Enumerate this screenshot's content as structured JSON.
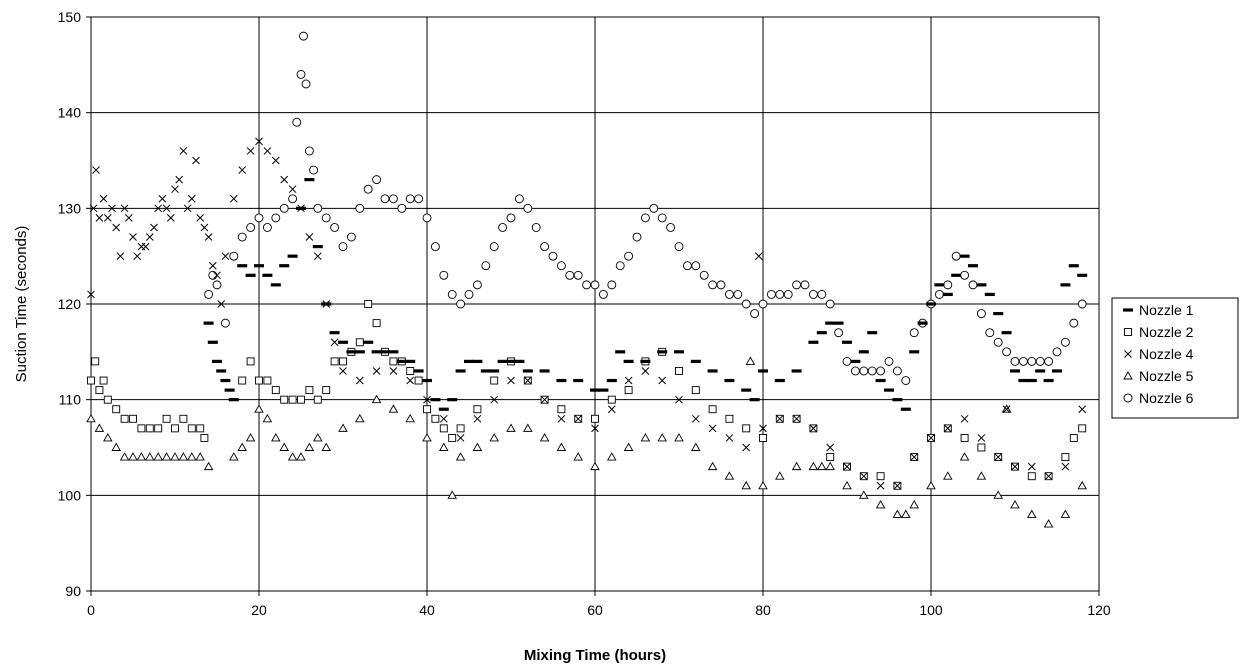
{
  "chart_data": {
    "type": "scatter",
    "title": "",
    "xlabel": "Mixing Time (hours)",
    "ylabel": "Suction Time (seconds)",
    "xlim": [
      0,
      120
    ],
    "ylim": [
      90,
      150
    ],
    "xticks": [
      0,
      20,
      40,
      60,
      80,
      100,
      120
    ],
    "yticks": [
      90,
      100,
      110,
      120,
      130,
      140,
      150
    ],
    "grid": true,
    "legend_position": "right",
    "series": [
      {
        "name": "Nozzle 1",
        "marker": "dash",
        "color": "#000000",
        "x": [
          14,
          14.5,
          15,
          15.5,
          16,
          16.5,
          17,
          18,
          19,
          20,
          21,
          22,
          23,
          24,
          25,
          26,
          27,
          28,
          29,
          30,
          31,
          32,
          33,
          34,
          35,
          36,
          37,
          38,
          39,
          40,
          41,
          42,
          43,
          44,
          45,
          46,
          47,
          48,
          49,
          50,
          51,
          52,
          54,
          56,
          58,
          60,
          61,
          62,
          63,
          64,
          66,
          68,
          70,
          72,
          74,
          76,
          78,
          79,
          80,
          82,
          84,
          86,
          87,
          88,
          89,
          90,
          91,
          92,
          93,
          94,
          95,
          96,
          97,
          98,
          99,
          100,
          101,
          102,
          103,
          104,
          105,
          106,
          107,
          108,
          109,
          110,
          111,
          112,
          113,
          114,
          115,
          116,
          117,
          118
        ],
        "y": [
          118,
          116,
          114,
          113,
          112,
          111,
          110,
          124,
          123,
          124,
          123,
          122,
          124,
          125,
          130,
          133,
          126,
          120,
          117,
          116,
          115,
          115,
          116,
          115,
          115,
          115,
          114,
          114,
          113,
          112,
          110,
          109,
          110,
          113,
          114,
          114,
          113,
          113,
          114,
          114,
          114,
          113,
          113,
          112,
          112,
          111,
          111,
          112,
          115,
          114,
          114,
          115,
          115,
          114,
          113,
          112,
          111,
          110,
          113,
          112,
          113,
          116,
          117,
          118,
          118,
          116,
          114,
          115,
          117,
          112,
          111,
          110,
          109,
          115,
          118,
          120,
          122,
          121,
          123,
          125,
          124,
          122,
          121,
          119,
          117,
          113,
          112,
          112,
          113,
          112,
          113,
          122,
          124,
          123
        ]
      },
      {
        "name": "Nozzle 2",
        "marker": "square",
        "color": "#000000",
        "x": [
          0,
          0.5,
          1,
          1.5,
          2,
          3,
          4,
          5,
          6,
          7,
          8,
          9,
          10,
          11,
          12,
          13,
          13.5,
          18,
          19,
          20,
          21,
          22,
          23,
          24,
          25,
          26,
          27,
          28,
          29,
          30,
          31,
          32,
          33,
          34,
          35,
          36,
          37,
          38,
          39,
          40,
          41,
          42,
          43,
          44,
          46,
          48,
          50,
          52,
          54,
          56,
          58,
          60,
          62,
          64,
          66,
          68,
          70,
          72,
          74,
          76,
          78,
          80,
          82,
          84,
          86,
          88,
          90,
          92,
          94,
          96,
          98,
          100,
          102,
          104,
          106,
          108,
          110,
          112,
          114,
          116,
          117,
          118
        ],
        "y": [
          112,
          114,
          111,
          112,
          110,
          109,
          108,
          108,
          107,
          107,
          107,
          108,
          107,
          108,
          107,
          107,
          106,
          112,
          114,
          112,
          112,
          111,
          110,
          110,
          110,
          111,
          110,
          111,
          114,
          114,
          115,
          116,
          120,
          118,
          115,
          114,
          114,
          113,
          112,
          109,
          108,
          107,
          106,
          107,
          109,
          112,
          114,
          112,
          110,
          109,
          108,
          108,
          110,
          111,
          114,
          115,
          113,
          111,
          109,
          108,
          107,
          106,
          108,
          108,
          107,
          104,
          103,
          102,
          102,
          101,
          104,
          106,
          107,
          106,
          105,
          104,
          103,
          102,
          102,
          104,
          106,
          107
        ]
      },
      {
        "name": "Nozzle 4",
        "marker": "x",
        "color": "#000000",
        "x": [
          0,
          0.3,
          0.6,
          1,
          1.5,
          2,
          2.5,
          3,
          3.5,
          4,
          4.5,
          5,
          5.5,
          6,
          6.5,
          7,
          7.5,
          8,
          8.5,
          9,
          9.5,
          10,
          10.5,
          11,
          11.5,
          12,
          12.5,
          13,
          13.5,
          14,
          14.5,
          15,
          15.5,
          16,
          17,
          18,
          19,
          20,
          21,
          22,
          23,
          24,
          25,
          26,
          27,
          28,
          29,
          30,
          32,
          34,
          36,
          38,
          40,
          42,
          44,
          46,
          48,
          50,
          52,
          54,
          56,
          58,
          60,
          62,
          64,
          66,
          68,
          70,
          72,
          74,
          76,
          78,
          79.5,
          80,
          82,
          84,
          86,
          88,
          90,
          92,
          94,
          96,
          98,
          100,
          102,
          104,
          106,
          108,
          109,
          110,
          112,
          114,
          116,
          118
        ],
        "y": [
          121,
          130,
          134,
          129,
          131,
          129,
          130,
          128,
          125,
          130,
          129,
          127,
          125,
          126,
          126,
          127,
          128,
          130,
          131,
          130,
          129,
          132,
          133,
          136,
          130,
          131,
          135,
          129,
          128,
          127,
          124,
          123,
          120,
          125,
          131,
          134,
          136,
          137,
          136,
          135,
          133,
          132,
          130,
          127,
          125,
          120,
          116,
          113,
          112,
          113,
          113,
          112,
          110,
          108,
          106,
          108,
          110,
          112,
          112,
          110,
          108,
          108,
          107,
          109,
          112,
          113,
          112,
          110,
          108,
          107,
          106,
          105,
          125,
          107,
          108,
          108,
          107,
          105,
          103,
          102,
          101,
          101,
          104,
          106,
          107,
          108,
          106,
          104,
          109,
          103,
          103,
          102,
          103,
          109
        ]
      },
      {
        "name": "Nozzle 5",
        "marker": "triangle",
        "color": "#000000",
        "x": [
          0,
          1,
          2,
          3,
          4,
          5,
          6,
          7,
          8,
          9,
          10,
          11,
          12,
          13,
          14,
          17,
          18,
          19,
          20,
          21,
          22,
          23,
          24,
          25,
          26,
          27,
          28,
          30,
          32,
          34,
          36,
          38,
          40,
          42,
          43,
          44,
          46,
          48,
          50,
          52,
          54,
          56,
          58,
          60,
          62,
          64,
          66,
          68,
          70,
          72,
          74,
          76,
          78,
          78.5,
          80,
          82,
          84,
          86,
          87,
          88,
          90,
          92,
          94,
          96,
          97,
          98,
          100,
          102,
          104,
          106,
          108,
          109,
          110,
          112,
          114,
          116,
          118
        ],
        "y": [
          108,
          107,
          106,
          105,
          104,
          104,
          104,
          104,
          104,
          104,
          104,
          104,
          104,
          104,
          103,
          104,
          105,
          106,
          109,
          108,
          106,
          105,
          104,
          104,
          105,
          106,
          105,
          107,
          108,
          110,
          109,
          108,
          106,
          105,
          100,
          104,
          105,
          106,
          107,
          107,
          106,
          105,
          104,
          103,
          104,
          105,
          106,
          106,
          106,
          105,
          103,
          102,
          101,
          114,
          101,
          102,
          103,
          103,
          103,
          103,
          101,
          100,
          99,
          98,
          98,
          99,
          101,
          102,
          104,
          102,
          100,
          109,
          99,
          98,
          97,
          98,
          101
        ]
      },
      {
        "name": "Nozzle 6",
        "marker": "circle",
        "color": "#000000",
        "x": [
          14,
          14.5,
          15,
          16,
          17,
          18,
          19,
          20,
          21,
          22,
          23,
          24,
          24.5,
          25,
          25.3,
          25.6,
          26,
          26.5,
          27,
          28,
          29,
          30,
          31,
          32,
          33,
          34,
          35,
          36,
          37,
          38,
          39,
          40,
          41,
          42,
          43,
          44,
          45,
          46,
          47,
          48,
          49,
          50,
          51,
          52,
          53,
          54,
          55,
          56,
          57,
          58,
          59,
          60,
          61,
          62,
          63,
          64,
          65,
          66,
          67,
          68,
          69,
          70,
          71,
          72,
          73,
          74,
          75,
          76,
          77,
          78,
          79,
          80,
          81,
          82,
          83,
          84,
          85,
          86,
          87,
          88,
          89,
          90,
          91,
          92,
          93,
          94,
          95,
          96,
          97,
          98,
          99,
          100,
          101,
          102,
          103,
          104,
          105,
          106,
          107,
          108,
          109,
          110,
          111,
          112,
          113,
          114,
          115,
          116,
          117,
          118
        ],
        "y": [
          121,
          123,
          122,
          118,
          125,
          127,
          128,
          129,
          128,
          129,
          130,
          131,
          139,
          144,
          148,
          143,
          136,
          134,
          130,
          129,
          128,
          126,
          127,
          130,
          132,
          133,
          131,
          131,
          130,
          131,
          131,
          129,
          126,
          123,
          121,
          120,
          121,
          122,
          124,
          126,
          128,
          129,
          131,
          130,
          128,
          126,
          125,
          124,
          123,
          123,
          122,
          122,
          121,
          122,
          124,
          125,
          127,
          129,
          130,
          129,
          128,
          126,
          124,
          124,
          123,
          122,
          122,
          121,
          121,
          120,
          119,
          120,
          121,
          121,
          121,
          122,
          122,
          121,
          121,
          120,
          117,
          114,
          113,
          113,
          113,
          113,
          114,
          113,
          112,
          117,
          118,
          120,
          121,
          122,
          125,
          123,
          122,
          119,
          117,
          116,
          115,
          114,
          114,
          114,
          114,
          114,
          115,
          116,
          118,
          120
        ]
      }
    ]
  }
}
